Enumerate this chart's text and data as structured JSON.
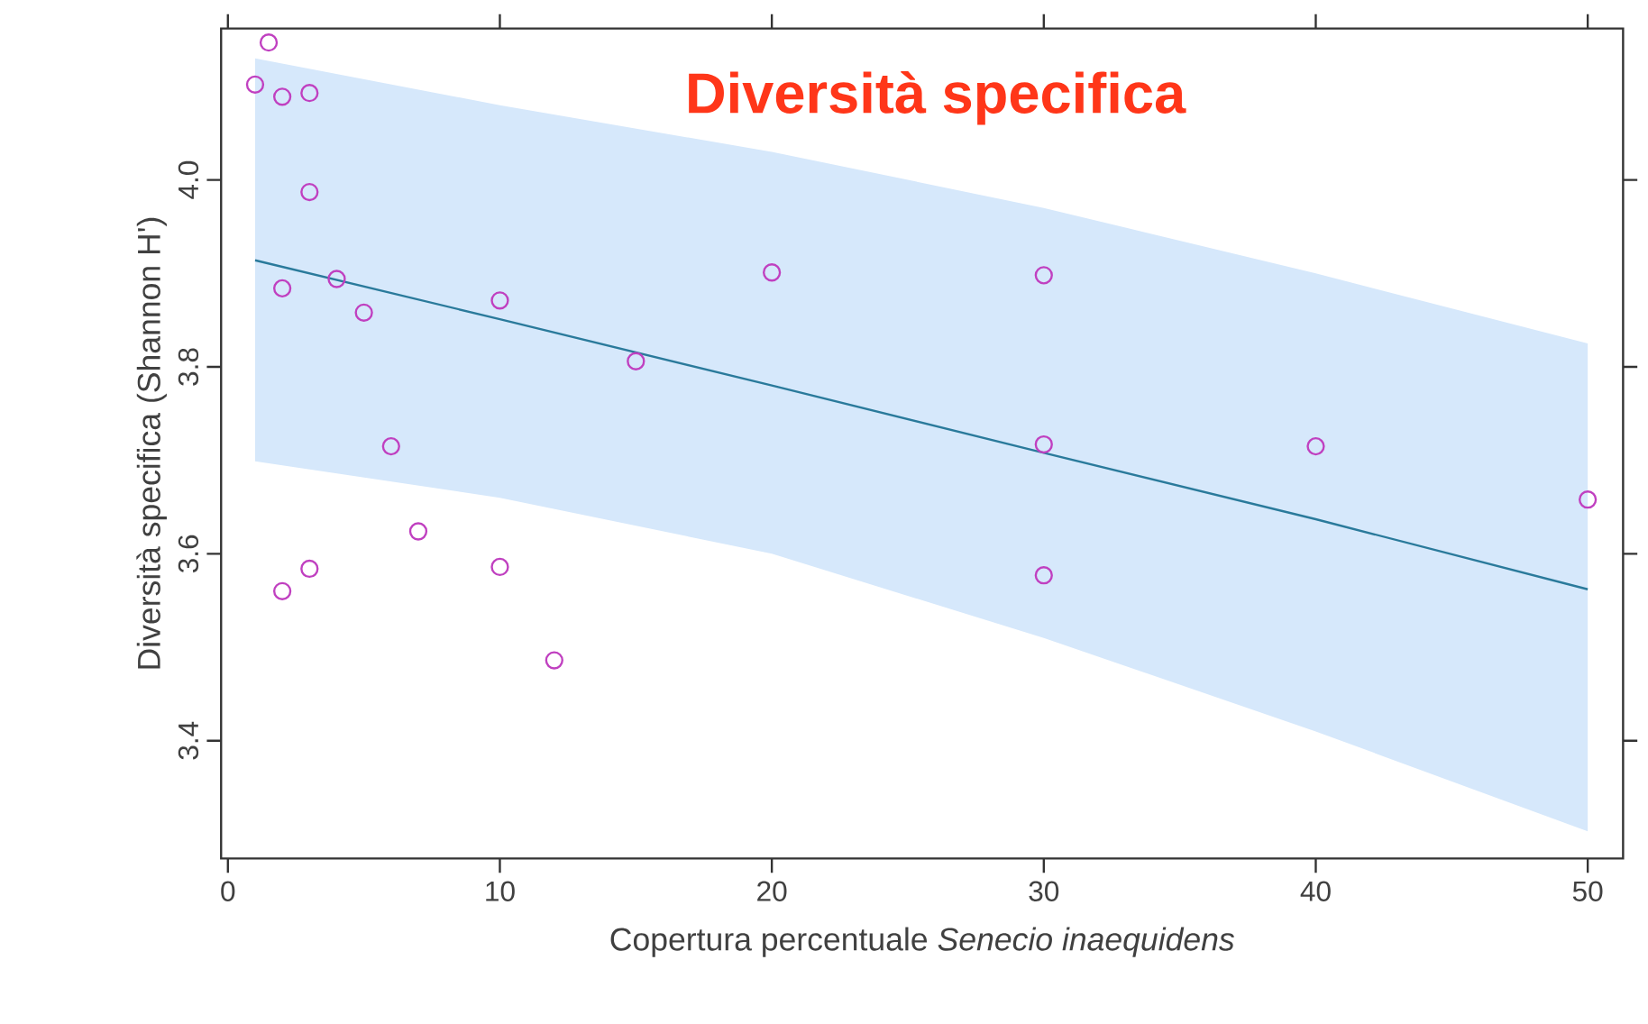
{
  "chart_data": {
    "type": "scatter",
    "title": "Diversità specifica",
    "xlabel": "Copertura percentuale *Senecio inaequidens*",
    "ylabel": "Diversità specifica (Shannon H')",
    "xlim": [
      -0.25,
      51.3
    ],
    "ylim": [
      3.274,
      4.162
    ],
    "xticks": [
      0,
      10,
      20,
      30,
      40,
      50
    ],
    "yticks": [
      3.4,
      3.6,
      3.8,
      {
        "value": 4.0,
        "label": "4.0"
      }
    ],
    "grid": false,
    "series": [
      {
        "type": "line",
        "marker": "none",
        "color": "#2a7a9b",
        "x": [
          1,
          10,
          20,
          30,
          40,
          50
        ],
        "values": [
          3.914,
          3.851,
          3.78,
          3.708,
          3.637,
          3.562
        ],
        "lower": [
          3.699,
          3.66,
          3.6,
          3.51,
          3.41,
          3.303
        ],
        "upper": [
          4.13,
          4.08,
          4.03,
          3.97,
          3.9,
          3.825
        ]
      },
      {
        "marker": "circle",
        "color": "#c040c0",
        "x": [
          1,
          1.5,
          2,
          3,
          3,
          4,
          2,
          5,
          6,
          7,
          10,
          10,
          3,
          2,
          12,
          15,
          20,
          30,
          30,
          30,
          40,
          50
        ],
        "values": [
          4.102,
          4.147,
          4.089,
          4.093,
          3.987,
          3.894,
          3.884,
          3.858,
          3.715,
          3.624,
          3.871,
          3.586,
          3.584,
          3.56,
          3.486,
          3.806,
          3.901,
          3.898,
          3.717,
          3.577,
          3.715,
          3.658
        ]
      }
    ]
  }
}
